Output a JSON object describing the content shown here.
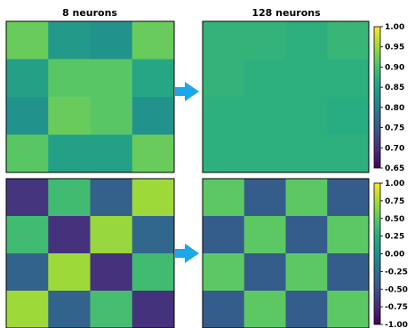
{
  "chart_data": [
    {
      "type": "heatmap",
      "title": "8 neurons",
      "row": "top",
      "values": [
        [
          0.92,
          0.84,
          0.83,
          0.92
        ],
        [
          0.85,
          0.91,
          0.91,
          0.86
        ],
        [
          0.83,
          0.92,
          0.91,
          0.83
        ],
        [
          0.91,
          0.85,
          0.85,
          0.92
        ]
      ],
      "vmin": 0.65,
      "vmax": 1.0
    },
    {
      "type": "heatmap",
      "title": "128 neurons",
      "row": "top",
      "values": [
        [
          0.88,
          0.88,
          0.875,
          0.885
        ],
        [
          0.88,
          0.875,
          0.875,
          0.875
        ],
        [
          0.875,
          0.875,
          0.875,
          0.87
        ],
        [
          0.875,
          0.875,
          0.875,
          0.875
        ]
      ],
      "vmin": 0.65,
      "vmax": 1.0,
      "colorbar": {
        "ticks": [
          "0.65",
          "0.70",
          "0.75",
          "0.80",
          "0.85",
          "0.90",
          "0.95",
          "1.00"
        ]
      }
    },
    {
      "type": "heatmap",
      "title": "",
      "row": "bottom",
      "values": [
        [
          -0.68,
          0.38,
          -0.38,
          0.72
        ],
        [
          0.38,
          -0.7,
          0.7,
          -0.32
        ],
        [
          -0.35,
          0.72,
          -0.7,
          0.38
        ],
        [
          0.72,
          -0.35,
          0.4,
          -0.7
        ]
      ],
      "vmin": -1.0,
      "vmax": 1.0
    },
    {
      "type": "heatmap",
      "title": "",
      "row": "bottom",
      "values": [
        [
          0.5,
          -0.4,
          0.5,
          -0.4
        ],
        [
          -0.4,
          0.5,
          -0.4,
          0.5
        ],
        [
          0.5,
          -0.4,
          0.5,
          -0.4
        ],
        [
          -0.4,
          0.5,
          -0.4,
          0.5
        ]
      ],
      "vmin": -1.0,
      "vmax": 1.0,
      "colorbar": {
        "ticks": [
          "-1.00",
          "-0.75",
          "-0.50",
          "-0.25",
          "0.00",
          "0.25",
          "0.50",
          "0.75",
          "1.00"
        ]
      }
    }
  ],
  "colormap": "viridis",
  "arrow_color": "#1aa7ec"
}
